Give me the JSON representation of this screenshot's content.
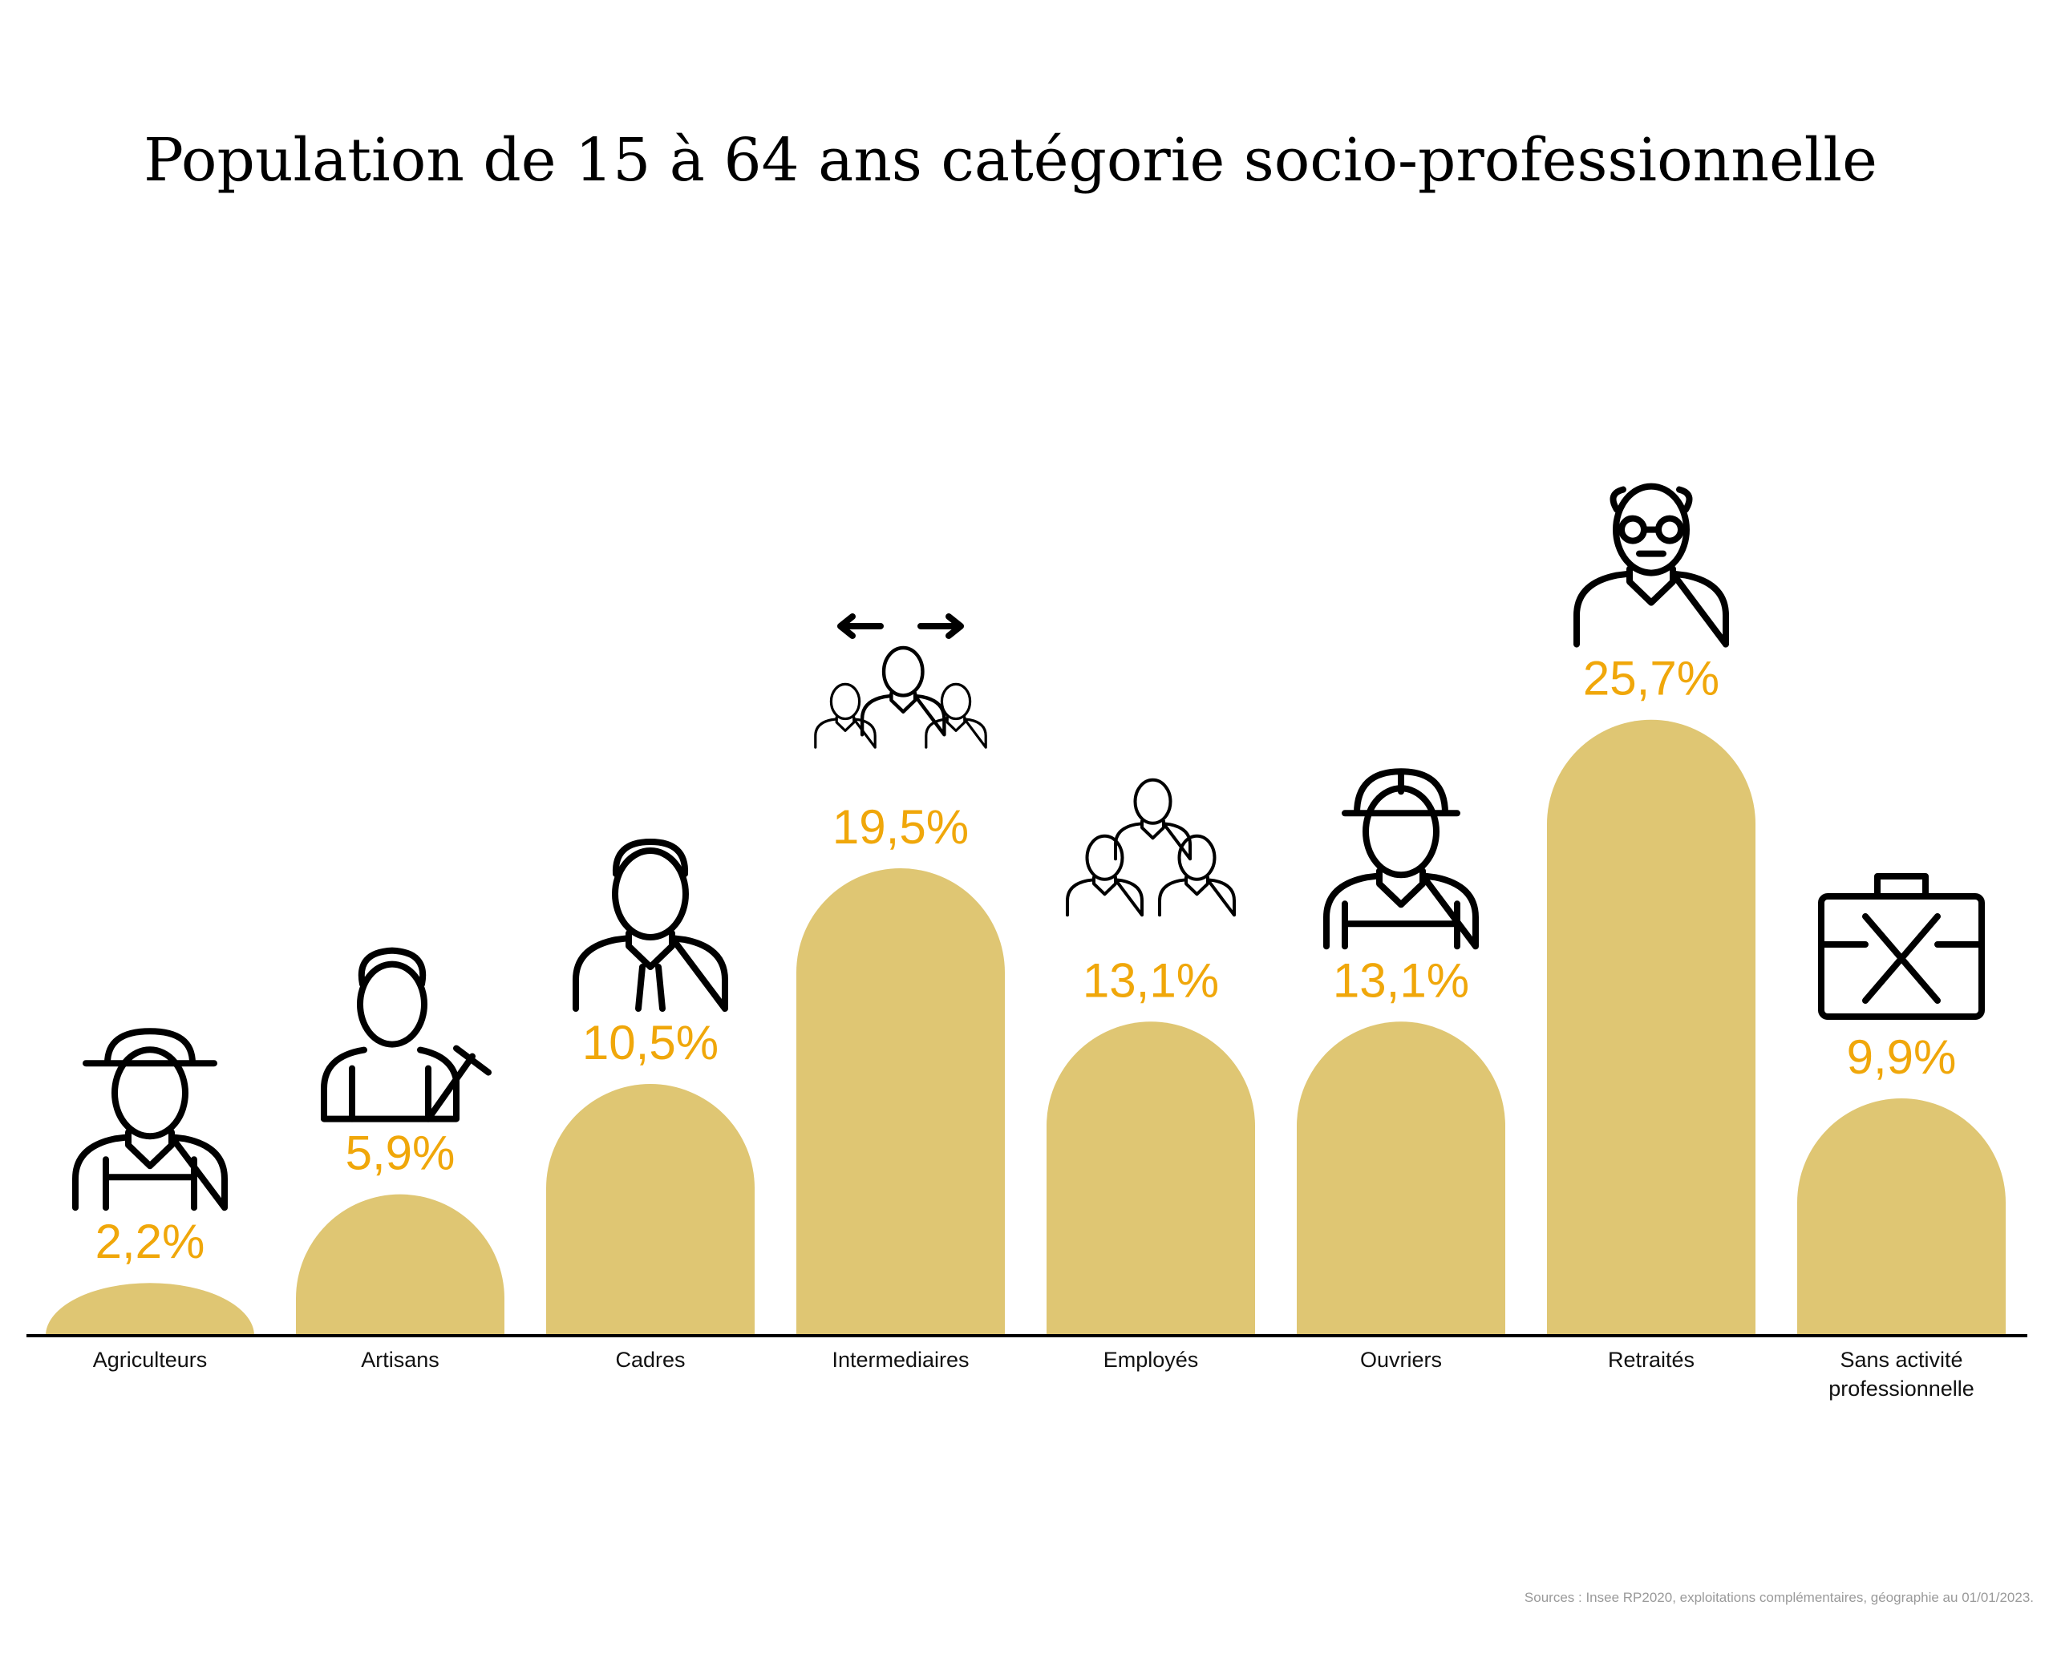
{
  "chart_data": {
    "type": "bar",
    "title": "Population de 15 à 64 ans catégorie socio-professionnelle",
    "categories": [
      "Agriculteurs",
      "Artisans",
      "Cadres",
      "Intermediaires",
      "Employés",
      "Ouvriers",
      "Retraités",
      "Sans activité professionnelle"
    ],
    "values": [
      2.2,
      5.9,
      10.5,
      19.5,
      13.1,
      13.1,
      25.7,
      9.9
    ],
    "value_labels": [
      "2,2%",
      "5,9%",
      "10,5%",
      "19,5%",
      "13,1%",
      "13,1%",
      "25,7%",
      "9,9%"
    ],
    "icons": [
      "farmer-icon",
      "craftsman-icon",
      "manager-icon",
      "intermediate-professions-icon",
      "employees-icon",
      "worker-icon",
      "retiree-icon",
      "no-activity-briefcase-icon"
    ],
    "xlabel": "",
    "ylabel": "",
    "ylim": [
      0,
      30
    ],
    "grid": false,
    "bar_color": "#DFC673",
    "label_color": "#F0A70A",
    "source": "Sources : Insee RP2020, exploitations complémentaires, géographie au 01/01/2023."
  }
}
